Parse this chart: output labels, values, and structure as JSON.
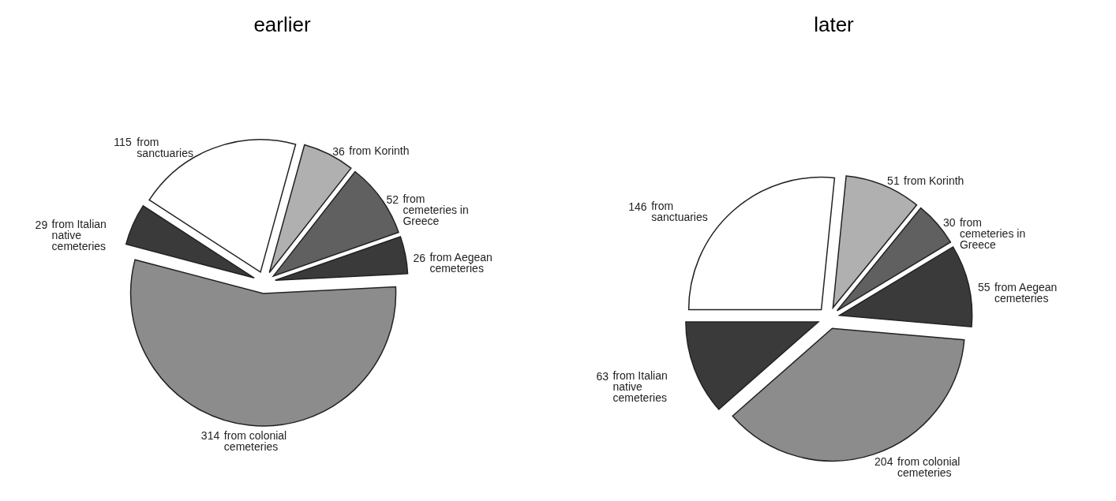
{
  "chart_data": [
    {
      "type": "pie",
      "title": "earlier",
      "categories": [
        "from sanctuaries",
        "from Korinth",
        "from cemeteries in Greece",
        "from Aegean cemeteries",
        "from colonial cemeteries",
        "from Italian native cemeteries"
      ],
      "values": [
        115,
        36,
        52,
        26,
        314,
        29
      ],
      "colors": [
        "#ffffff",
        "#b0b0b0",
        "#606060",
        "#3a3a3a",
        "#8c8c8c",
        "#3a3a3a"
      ],
      "data_labels": true
    },
    {
      "type": "pie",
      "title": "later",
      "categories": [
        "from sanctuaries",
        "from Korinth",
        "from cemeteries in Greece",
        "from Aegean cemeteries",
        "from colonial cemeteries",
        "from Italian native cemeteries"
      ],
      "values": [
        146,
        51,
        30,
        55,
        204,
        63
      ],
      "colors": [
        "#ffffff",
        "#b0b0b0",
        "#606060",
        "#3a3a3a",
        "#8c8c8c",
        "#3a3a3a"
      ],
      "data_labels": true
    }
  ]
}
